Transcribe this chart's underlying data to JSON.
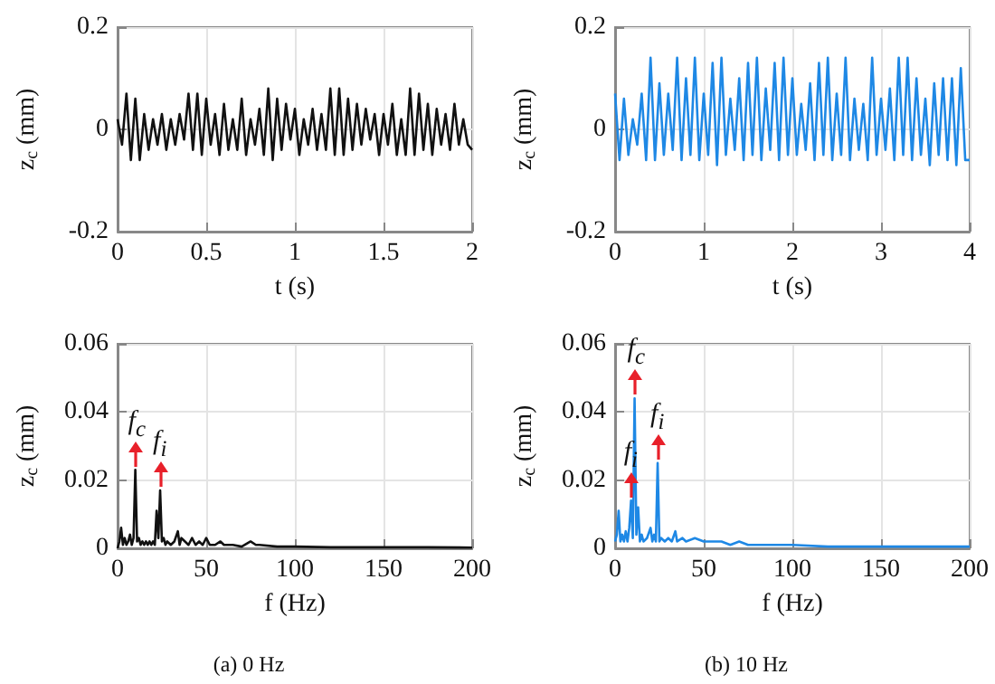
{
  "chart_data": [
    {
      "type": "line",
      "xlabel": "t (s)",
      "ylabel": "z$_{c}$ (mm)",
      "xlim": [
        0,
        2
      ],
      "xticks": [
        0,
        0.5,
        1,
        1.5,
        2
      ],
      "ylim": [
        -0.2,
        0.2
      ],
      "yticks": [
        -0.2,
        0,
        0.2
      ],
      "grid": true,
      "marker": "none",
      "line_style": "solid",
      "series": [
        {
          "color": "#111111",
          "x": [
            0,
            0.025,
            0.05,
            0.075,
            0.1,
            0.125,
            0.15,
            0.175,
            0.2,
            0.225,
            0.25,
            0.275,
            0.3,
            0.325,
            0.35,
            0.375,
            0.4,
            0.425,
            0.45,
            0.475,
            0.5,
            0.525,
            0.55,
            0.575,
            0.6,
            0.625,
            0.65,
            0.675,
            0.7,
            0.725,
            0.75,
            0.775,
            0.8,
            0.825,
            0.85,
            0.875,
            0.9,
            0.925,
            0.95,
            0.975,
            1,
            1.025,
            1.05,
            1.075,
            1.1,
            1.125,
            1.15,
            1.175,
            1.2,
            1.225,
            1.25,
            1.275,
            1.3,
            1.325,
            1.35,
            1.375,
            1.4,
            1.425,
            1.45,
            1.475,
            1.5,
            1.525,
            1.55,
            1.575,
            1.6,
            1.625,
            1.65,
            1.675,
            1.7,
            1.725,
            1.75,
            1.775,
            1.8,
            1.825,
            1.85,
            1.875,
            1.9,
            1.925,
            1.95,
            1.975,
            2
          ],
          "values": [
            0.02,
            -0.03,
            0.07,
            -0.06,
            0.06,
            -0.06,
            0.03,
            -0.04,
            0.02,
            -0.03,
            0.03,
            -0.04,
            0.02,
            -0.03,
            0.03,
            -0.02,
            0.07,
            -0.04,
            0.07,
            -0.05,
            0.06,
            -0.03,
            0.03,
            -0.05,
            0.05,
            -0.04,
            0.02,
            -0.04,
            0.06,
            -0.05,
            0.02,
            -0.03,
            0.04,
            -0.05,
            0.08,
            -0.06,
            0.06,
            -0.04,
            0.05,
            -0.02,
            0.04,
            -0.05,
            0.02,
            -0.03,
            0.04,
            -0.04,
            0.03,
            -0.04,
            0.08,
            -0.05,
            0.08,
            -0.05,
            0.06,
            -0.04,
            0.05,
            -0.03,
            0.04,
            -0.02,
            0.03,
            -0.05,
            0.03,
            -0.03,
            0.05,
            -0.05,
            0.02,
            -0.05,
            0.08,
            -0.05,
            0.07,
            -0.04,
            0.05,
            -0.05,
            0.04,
            -0.03,
            0.03,
            -0.04,
            0.05,
            -0.03,
            0.02,
            -0.03,
            -0.04
          ]
        }
      ]
    },
    {
      "type": "line",
      "xlabel": "t (s)",
      "ylabel": "z$_{c}$ (mm)",
      "xlim": [
        0,
        4
      ],
      "xticks": [
        0,
        1,
        2,
        3,
        4
      ],
      "ylim": [
        -0.2,
        0.2
      ],
      "yticks": [
        -0.2,
        0,
        0.2
      ],
      "grid": true,
      "marker": "none",
      "line_style": "solid",
      "series": [
        {
          "color": "#1e88e5",
          "x": [
            0,
            0.05,
            0.1,
            0.15,
            0.2,
            0.25,
            0.3,
            0.35,
            0.4,
            0.45,
            0.5,
            0.55,
            0.6,
            0.65,
            0.7,
            0.75,
            0.8,
            0.85,
            0.9,
            0.95,
            1,
            1.05,
            1.1,
            1.15,
            1.2,
            1.25,
            1.3,
            1.35,
            1.4,
            1.45,
            1.5,
            1.55,
            1.6,
            1.65,
            1.7,
            1.75,
            1.8,
            1.85,
            1.9,
            1.95,
            2,
            2.05,
            2.1,
            2.15,
            2.2,
            2.25,
            2.3,
            2.35,
            2.4,
            2.45,
            2.5,
            2.55,
            2.6,
            2.65,
            2.7,
            2.75,
            2.8,
            2.85,
            2.9,
            2.95,
            3,
            3.05,
            3.1,
            3.15,
            3.2,
            3.25,
            3.3,
            3.35,
            3.4,
            3.45,
            3.5,
            3.55,
            3.6,
            3.65,
            3.7,
            3.75,
            3.8,
            3.85,
            3.9,
            3.95,
            4
          ],
          "values": [
            0.07,
            -0.06,
            0.06,
            -0.05,
            0.02,
            -0.03,
            0.07,
            -0.06,
            0.14,
            -0.06,
            0.09,
            -0.05,
            0.07,
            -0.04,
            0.14,
            -0.06,
            0.1,
            -0.05,
            0.14,
            -0.06,
            0.07,
            -0.05,
            0.13,
            -0.07,
            0.14,
            -0.05,
            0.06,
            -0.04,
            0.1,
            -0.06,
            0.13,
            -0.05,
            0.14,
            -0.06,
            0.08,
            -0.04,
            0.13,
            -0.06,
            0.14,
            -0.05,
            0.1,
            -0.05,
            0.05,
            -0.04,
            0.09,
            -0.06,
            0.13,
            -0.05,
            0.14,
            -0.06,
            0.07,
            -0.05,
            0.14,
            -0.06,
            0.06,
            -0.04,
            0.05,
            -0.06,
            0.14,
            -0.05,
            0.06,
            -0.04,
            0.08,
            -0.06,
            0.14,
            -0.05,
            0.14,
            -0.06,
            0.1,
            -0.05,
            0.06,
            -0.07,
            0.09,
            -0.05,
            0.1,
            -0.06,
            0.1,
            -0.07,
            0.12,
            -0.06,
            -0.06
          ]
        }
      ]
    },
    {
      "type": "line",
      "xlabel": "f (Hz)",
      "ylabel": "z$_{c}$ (mm)",
      "xlim": [
        0,
        200
      ],
      "xticks": [
        0,
        50,
        100,
        150,
        200
      ],
      "ylim": [
        0,
        0.06
      ],
      "yticks": [
        0,
        0.02,
        0.04,
        0.06
      ],
      "grid": true,
      "marker": "none",
      "line_style": "solid",
      "annotations": [
        {
          "text": "f$_{c}$",
          "x": 10,
          "y": 0.023
        },
        {
          "text": "f$_{i}$",
          "x": 24,
          "y": 0.017
        },
        "(a) 0 Hz"
      ],
      "series": [
        {
          "color": "#111111",
          "x": [
            0,
            1,
            2,
            3,
            4,
            5,
            6,
            7,
            8,
            9,
            10,
            11,
            12,
            13,
            14,
            15,
            16,
            17,
            18,
            19,
            20,
            21,
            22,
            23,
            24,
            25,
            26,
            27,
            28,
            30,
            32,
            34,
            35,
            36,
            38,
            40,
            42,
            44,
            46,
            48,
            50,
            52,
            55,
            58,
            60,
            65,
            70,
            75,
            78,
            80,
            90,
            100,
            120,
            150,
            175,
            200
          ],
          "values": [
            0,
            0.002,
            0.006,
            0.001,
            0.003,
            0.001,
            0.002,
            0.004,
            0.001,
            0.003,
            0.023,
            0.002,
            0.003,
            0.001,
            0.002,
            0.001,
            0.002,
            0.001,
            0.002,
            0.001,
            0.002,
            0.001,
            0.011,
            0.003,
            0.017,
            0.002,
            0.003,
            0.001,
            0.002,
            0.001,
            0.002,
            0.005,
            0.001,
            0.003,
            0.002,
            0.001,
            0.003,
            0.001,
            0.002,
            0.001,
            0.003,
            0.001,
            0.001,
            0.002,
            0.001,
            0.001,
            0.0005,
            0.002,
            0.001,
            0.001,
            0.0005,
            0.0005,
            0.0003,
            0.0003,
            0.0003,
            0.0002
          ]
        }
      ]
    },
    {
      "type": "line",
      "xlabel": "f (Hz)",
      "ylabel": "z$_{c}$ (mm)",
      "xlim": [
        0,
        200
      ],
      "xticks": [
        0,
        50,
        100,
        150,
        200
      ],
      "ylim": [
        0,
        0.06
      ],
      "yticks": [
        0,
        0.02,
        0.04,
        0.06
      ],
      "grid": true,
      "marker": "none",
      "line_style": "solid",
      "annotations": [
        {
          "text": "f$_{c}$",
          "x": 11,
          "y": 0.044
        },
        {
          "text": "f$_{i}$",
          "x": 24,
          "y": 0.025
        },
        {
          "text": "f$_{i}$",
          "x": 9,
          "y": 0.014
        },
        "(b) 10 Hz"
      ],
      "series": [
        {
          "color": "#1e88e5",
          "x": [
            0,
            1,
            2,
            3,
            4,
            5,
            6,
            7,
            8,
            9,
            10,
            11,
            12,
            13,
            14,
            15,
            16,
            18,
            20,
            21,
            22,
            23,
            24,
            25,
            26,
            28,
            30,
            32,
            34,
            35,
            38,
            40,
            45,
            50,
            55,
            60,
            65,
            70,
            75,
            80,
            90,
            100,
            120,
            150,
            175,
            200
          ],
          "values": [
            0.002,
            0.004,
            0.011,
            0.002,
            0.004,
            0.002,
            0.005,
            0.002,
            0.006,
            0.014,
            0.003,
            0.044,
            0.004,
            0.012,
            0.002,
            0.004,
            0.002,
            0.003,
            0.006,
            0.002,
            0.004,
            0.002,
            0.025,
            0.002,
            0.003,
            0.002,
            0.003,
            0.002,
            0.005,
            0.002,
            0.003,
            0.002,
            0.003,
            0.002,
            0.002,
            0.002,
            0.001,
            0.002,
            0.001,
            0.001,
            0.001,
            0.001,
            0.0005,
            0.0005,
            0.0005,
            0.0005
          ]
        }
      ]
    }
  ]
}
